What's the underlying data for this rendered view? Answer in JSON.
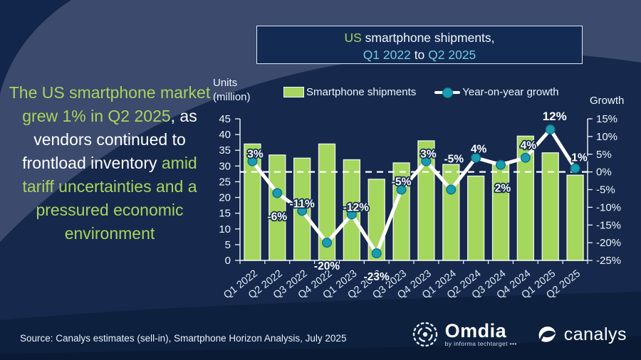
{
  "title_box": {
    "line1_highlight": "US",
    "line1_rest": " smartphone shipments,",
    "line2_start": "Q1 2022",
    "line2_mid": " to ",
    "line2_end": "Q2 2025"
  },
  "headline": {
    "part1_green": "The US smartphone market grew 1% in Q2 2025",
    "part2_white": ", as vendors continued to frontload inventory ",
    "part3_green": "amid tariff uncertainties and a pressured economic environment"
  },
  "axes": {
    "left_title_line1": "Units",
    "left_title_line2": "(million)",
    "right_title": "Growth"
  },
  "legend": {
    "bars_label": "Smartphone shipments",
    "line_label": "Year-on-year growth"
  },
  "chart_data": {
    "type": "bar+line combo",
    "title": "US smartphone shipments, Q1 2022 to Q2 2025",
    "categories": [
      "Q1 2022",
      "Q2 2022",
      "Q3 2022",
      "Q4 2022",
      "Q1 2023",
      "Q2 2023",
      "Q3 2023",
      "Q4 2023",
      "Q1 2024",
      "Q2 2024",
      "Q3 2024",
      "Q4 2024",
      "Q1 2025",
      "Q2 2025"
    ],
    "series": [
      {
        "name": "Smartphone shipments",
        "chart_type": "bar",
        "axis": "left",
        "unit": "million units",
        "color": "#a5d65e",
        "values": [
          37,
          33.5,
          32.5,
          37,
          32,
          25.8,
          31,
          38,
          30.5,
          26.8,
          31.3,
          39.5,
          34.2,
          27.1
        ]
      },
      {
        "name": "Year-on-year growth",
        "chart_type": "line",
        "axis": "right",
        "unit": "percent",
        "color": "#ffffff",
        "marker_color": "#1a9cb0",
        "values": [
          3,
          -6,
          -11,
          -20,
          -12,
          -23,
          -5,
          3,
          -5,
          4,
          2,
          4,
          12,
          1
        ],
        "labels": [
          "3%",
          "-6%",
          "-11%",
          "-20%",
          "-12%",
          "-23%",
          "-5%",
          "3%",
          "-5%",
          "4%",
          "2%",
          "4%",
          "12%",
          "1%"
        ],
        "label_dx": [
          4,
          0,
          0,
          0,
          6,
          0,
          0,
          3,
          4,
          4,
          3,
          4,
          6,
          6
        ],
        "label_dy": [
          -13,
          24,
          -13,
          24,
          -13,
          24,
          -14,
          -13,
          -46,
          -15,
          24,
          -20,
          -21,
          -18
        ]
      }
    ],
    "left_axis": {
      "min": 0,
      "max": 45,
      "step": 5
    },
    "right_axis": {
      "min": -25,
      "max": 15,
      "step": 5,
      "suffix": "%"
    },
    "zero_line": {
      "value": 0,
      "style": "dashed",
      "color": "#ffffff"
    },
    "legend_position": "top",
    "grid": false
  },
  "footer": {
    "source": "Source: Canalys estimates (sell-in), Smartphone Horizon Analysis, July 2025",
    "omdia_name": "Omdia",
    "omdia_sub": "by informa techtarget •••",
    "canalys_name": "canalys"
  }
}
